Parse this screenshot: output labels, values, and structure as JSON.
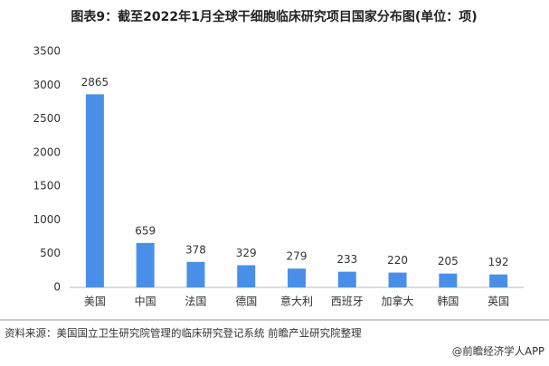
{
  "chart_data": {
    "type": "bar",
    "title": "图表9：截至2022年1月全球干细胞临床研究项目国家分布图(单位：项)",
    "categories": [
      "美国",
      "中国",
      "法国",
      "德国",
      "意大利",
      "西班牙",
      "加拿大",
      "韩国",
      "英国"
    ],
    "values": [
      2865,
      659,
      378,
      329,
      279,
      233,
      220,
      205,
      192
    ],
    "color": "#4a8fe7",
    "ylim": [
      0,
      3500
    ],
    "yticks": [
      0,
      500,
      1000,
      1500,
      2000,
      2500,
      3000,
      3500
    ],
    "grid": false,
    "source": "资料来源：美国国立卫生研究院管理的临床研究登记系统 前瞻产业研究院整理",
    "credit": "@前瞻经济学人APP"
  }
}
